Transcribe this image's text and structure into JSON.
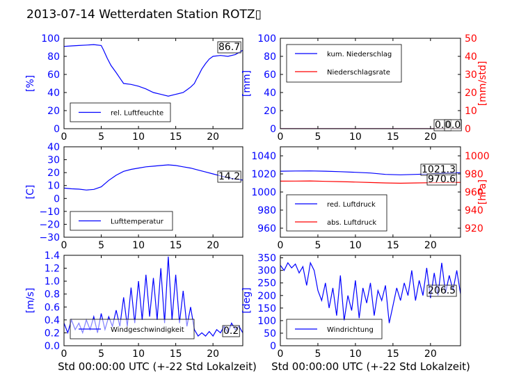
{
  "title": "2013-07-14 Wetterdaten Station ROTZ▯",
  "colors": {
    "blue": "#0000ff",
    "red": "#ff0000",
    "axis": "#000000"
  },
  "x_axis": {
    "ticks": [
      "0",
      "5",
      "10",
      "15",
      "20"
    ],
    "label": "Std 00:00:00 UTC (+-22 Std Lokalzeit)"
  },
  "chart_data": [
    {
      "id": "humidity",
      "type": "line",
      "ylabel": "[%]",
      "ylim": [
        0,
        100
      ],
      "yticks": [
        "0",
        "20",
        "40",
        "60",
        "80",
        "100"
      ],
      "legend": {
        "placement": "lower-left",
        "entries": [
          {
            "label": "rel. Luftfeuchte",
            "color": "#0000ff"
          }
        ]
      },
      "annotation": "86.7",
      "series": [
        {
          "name": "rel. Luftfeuchte",
          "color": "#0000ff",
          "x": [
            0,
            1,
            2,
            3,
            4,
            5,
            5.3,
            5.8,
            6.3,
            7,
            7.5,
            8,
            9,
            10,
            11,
            12,
            13,
            14,
            15,
            16,
            16.5,
            17,
            17.5,
            17.8,
            18,
            18.5,
            19,
            19.5,
            20,
            21,
            22,
            23,
            24
          ],
          "y": [
            91,
            91.5,
            92,
            92.5,
            93,
            92,
            87,
            78,
            70,
            62,
            56,
            50,
            49,
            47,
            44,
            40,
            38,
            36,
            38,
            40,
            43,
            46,
            50,
            55,
            58,
            66,
            72,
            77,
            80,
            81,
            80,
            82,
            86.7
          ]
        }
      ]
    },
    {
      "id": "precip",
      "type": "line",
      "ylabel": "[mm]",
      "ylabel_right": "[mm/std]",
      "ylim": [
        0,
        100
      ],
      "ylim_right": [
        0,
        50
      ],
      "yticks": [
        "0",
        "20",
        "40",
        "60",
        "80",
        "100"
      ],
      "yticks_right": [
        "0",
        "10",
        "20",
        "30",
        "40",
        "50"
      ],
      "legend": {
        "placement": "upper-left",
        "entries": [
          {
            "label": "kum. Niederschlag",
            "color": "#0000ff"
          },
          {
            "label": "Niederschlagsrate",
            "color": "#ff0000"
          }
        ]
      },
      "annotation": "0.0",
      "annotation2": "0.0",
      "series": [
        {
          "name": "kum. Niederschlag",
          "color": "#0000ff",
          "x": [
            0,
            24
          ],
          "y": [
            0,
            0
          ]
        },
        {
          "name": "Niederschlagsrate",
          "color": "#ff0000",
          "x": [
            0,
            24
          ],
          "y": [
            0,
            0
          ]
        }
      ]
    },
    {
      "id": "temperature",
      "type": "line",
      "ylabel": "[C]",
      "ylim": [
        -30,
        40
      ],
      "yticks": [
        "−30",
        "−20",
        "−10",
        "0",
        "10",
        "20",
        "30",
        "40"
      ],
      "legend": {
        "placement": "lower-left",
        "entries": [
          {
            "label": "Lufttemperatur",
            "color": "#0000ff"
          }
        ]
      },
      "annotation": "14.2",
      "series": [
        {
          "name": "Lufttemperatur",
          "color": "#0000ff",
          "x": [
            0,
            1,
            2,
            3,
            4,
            5,
            6,
            7,
            8,
            9,
            10,
            11,
            12,
            13,
            14,
            15,
            16,
            17,
            18,
            19,
            20,
            21,
            22,
            23,
            24
          ],
          "y": [
            8,
            7.5,
            7.2,
            6.5,
            7,
            9,
            14,
            18,
            21,
            22.5,
            23.5,
            24.5,
            25,
            25.5,
            26,
            25.5,
            24.5,
            23.5,
            22,
            20.5,
            19,
            17.5,
            16,
            15,
            14.2
          ]
        }
      ]
    },
    {
      "id": "pressure",
      "type": "line",
      "ylim": [
        950,
        1050
      ],
      "ylim_right": [
        910,
        1010
      ],
      "yticks": [
        "960",
        "980",
        "1000",
        "1020",
        "1040"
      ],
      "yticks_right": [
        "920",
        "940",
        "960",
        "980",
        "1000"
      ],
      "ylabel_right": "[hPa]",
      "legend": {
        "placement": "lower-left",
        "entries": [
          {
            "label": "red. Luftdruck",
            "color": "#0000ff"
          },
          {
            "label": "abs. Luftdruck",
            "color": "#ff0000"
          }
        ]
      },
      "annotation": "1021.3",
      "annotation2": "970.6",
      "series": [
        {
          "name": "red. Luftdruck",
          "color": "#0000ff",
          "x": [
            0,
            2,
            4,
            6,
            8,
            10,
            12,
            14,
            16,
            18,
            20,
            22,
            24
          ],
          "y": [
            1023,
            1023.2,
            1023.3,
            1023,
            1022.5,
            1021.8,
            1021,
            1019.5,
            1019,
            1019.5,
            1020,
            1021,
            1021.3
          ]
        },
        {
          "name": "abs. Luftdruck",
          "color": "#ff0000",
          "x": [
            0,
            2,
            4,
            6,
            8,
            10,
            12,
            14,
            16,
            18,
            20,
            22,
            24
          ],
          "y": [
            972,
            972.1,
            972.2,
            971.8,
            971.5,
            971,
            970.5,
            970,
            969.7,
            970,
            970.2,
            970.5,
            970.6
          ]
        }
      ]
    },
    {
      "id": "wind",
      "type": "line",
      "ylabel": "[m/s]",
      "ylim": [
        0,
        1.4
      ],
      "yticks": [
        "0.0",
        "0.2",
        "0.4",
        "0.6",
        "0.8",
        "1.0",
        "1.2",
        "1.4"
      ],
      "legend": {
        "placement": "lower-left",
        "entries": [
          {
            "label": "Windgeschwindigkeit",
            "color": "#0000ff"
          }
        ]
      },
      "annotation": "0.2",
      "series": [
        {
          "name": "Windgeschwindigkeit",
          "color": "#0000ff",
          "x": [
            0,
            0.5,
            1,
            1.5,
            2,
            2.5,
            3,
            3.5,
            4,
            4.5,
            5,
            5.5,
            6,
            6.5,
            7,
            7.5,
            8,
            8.5,
            9,
            9.5,
            10,
            10.5,
            11,
            11.5,
            12,
            12.5,
            13,
            13.5,
            14,
            14.5,
            15,
            15.5,
            16,
            16.5,
            17,
            17.5,
            18,
            18.5,
            19,
            19.5,
            20,
            20.5,
            21,
            21.5,
            22,
            22.5,
            23,
            23.5,
            24
          ],
          "y": [
            0.35,
            0.2,
            0.4,
            0.25,
            0.35,
            0.2,
            0.4,
            0.25,
            0.45,
            0.2,
            0.5,
            0.25,
            0.45,
            0.3,
            0.55,
            0.3,
            0.75,
            0.3,
            0.9,
            0.35,
            1.0,
            0.4,
            1.1,
            0.45,
            1.05,
            0.4,
            1.2,
            0.35,
            1.38,
            0.4,
            1.1,
            0.35,
            0.85,
            0.3,
            0.6,
            0.25,
            0.15,
            0.2,
            0.15,
            0.22,
            0.15,
            0.25,
            0.2,
            0.3,
            0.2,
            0.35,
            0.25,
            0.3,
            0.2
          ]
        }
      ]
    },
    {
      "id": "direction",
      "type": "line",
      "ylabel": "[deg]",
      "ylim": [
        0,
        360
      ],
      "yticks": [
        "0",
        "50",
        "100",
        "150",
        "200",
        "250",
        "300",
        "350"
      ],
      "legend": {
        "placement": "lower-left",
        "entries": [
          {
            "label": "Windrichtung",
            "color": "#0000ff"
          }
        ]
      },
      "annotation": "206.5",
      "series": [
        {
          "name": "Windrichtung",
          "color": "#0000ff",
          "x": [
            0,
            0.5,
            1,
            1.5,
            2,
            2.5,
            3,
            3.5,
            4,
            4.5,
            5,
            5.5,
            6,
            6.5,
            7,
            7.5,
            8,
            8.5,
            9,
            9.5,
            10,
            10.5,
            11,
            11.5,
            12,
            12.5,
            13,
            13.5,
            14,
            14.5,
            15,
            15.5,
            16,
            16.5,
            17,
            17.5,
            18,
            18.5,
            19,
            19.5,
            20,
            20.5,
            21,
            21.5,
            22,
            22.5,
            23,
            23.5,
            24
          ],
          "y": [
            320,
            300,
            330,
            310,
            325,
            290,
            315,
            240,
            330,
            300,
            220,
            180,
            250,
            150,
            230,
            120,
            280,
            100,
            200,
            140,
            260,
            110,
            230,
            170,
            250,
            120,
            220,
            180,
            240,
            90,
            160,
            230,
            180,
            250,
            200,
            300,
            180,
            260,
            200,
            310,
            190,
            290,
            200,
            330,
            210,
            280,
            220,
            300,
            206.5
          ]
        }
      ]
    }
  ]
}
